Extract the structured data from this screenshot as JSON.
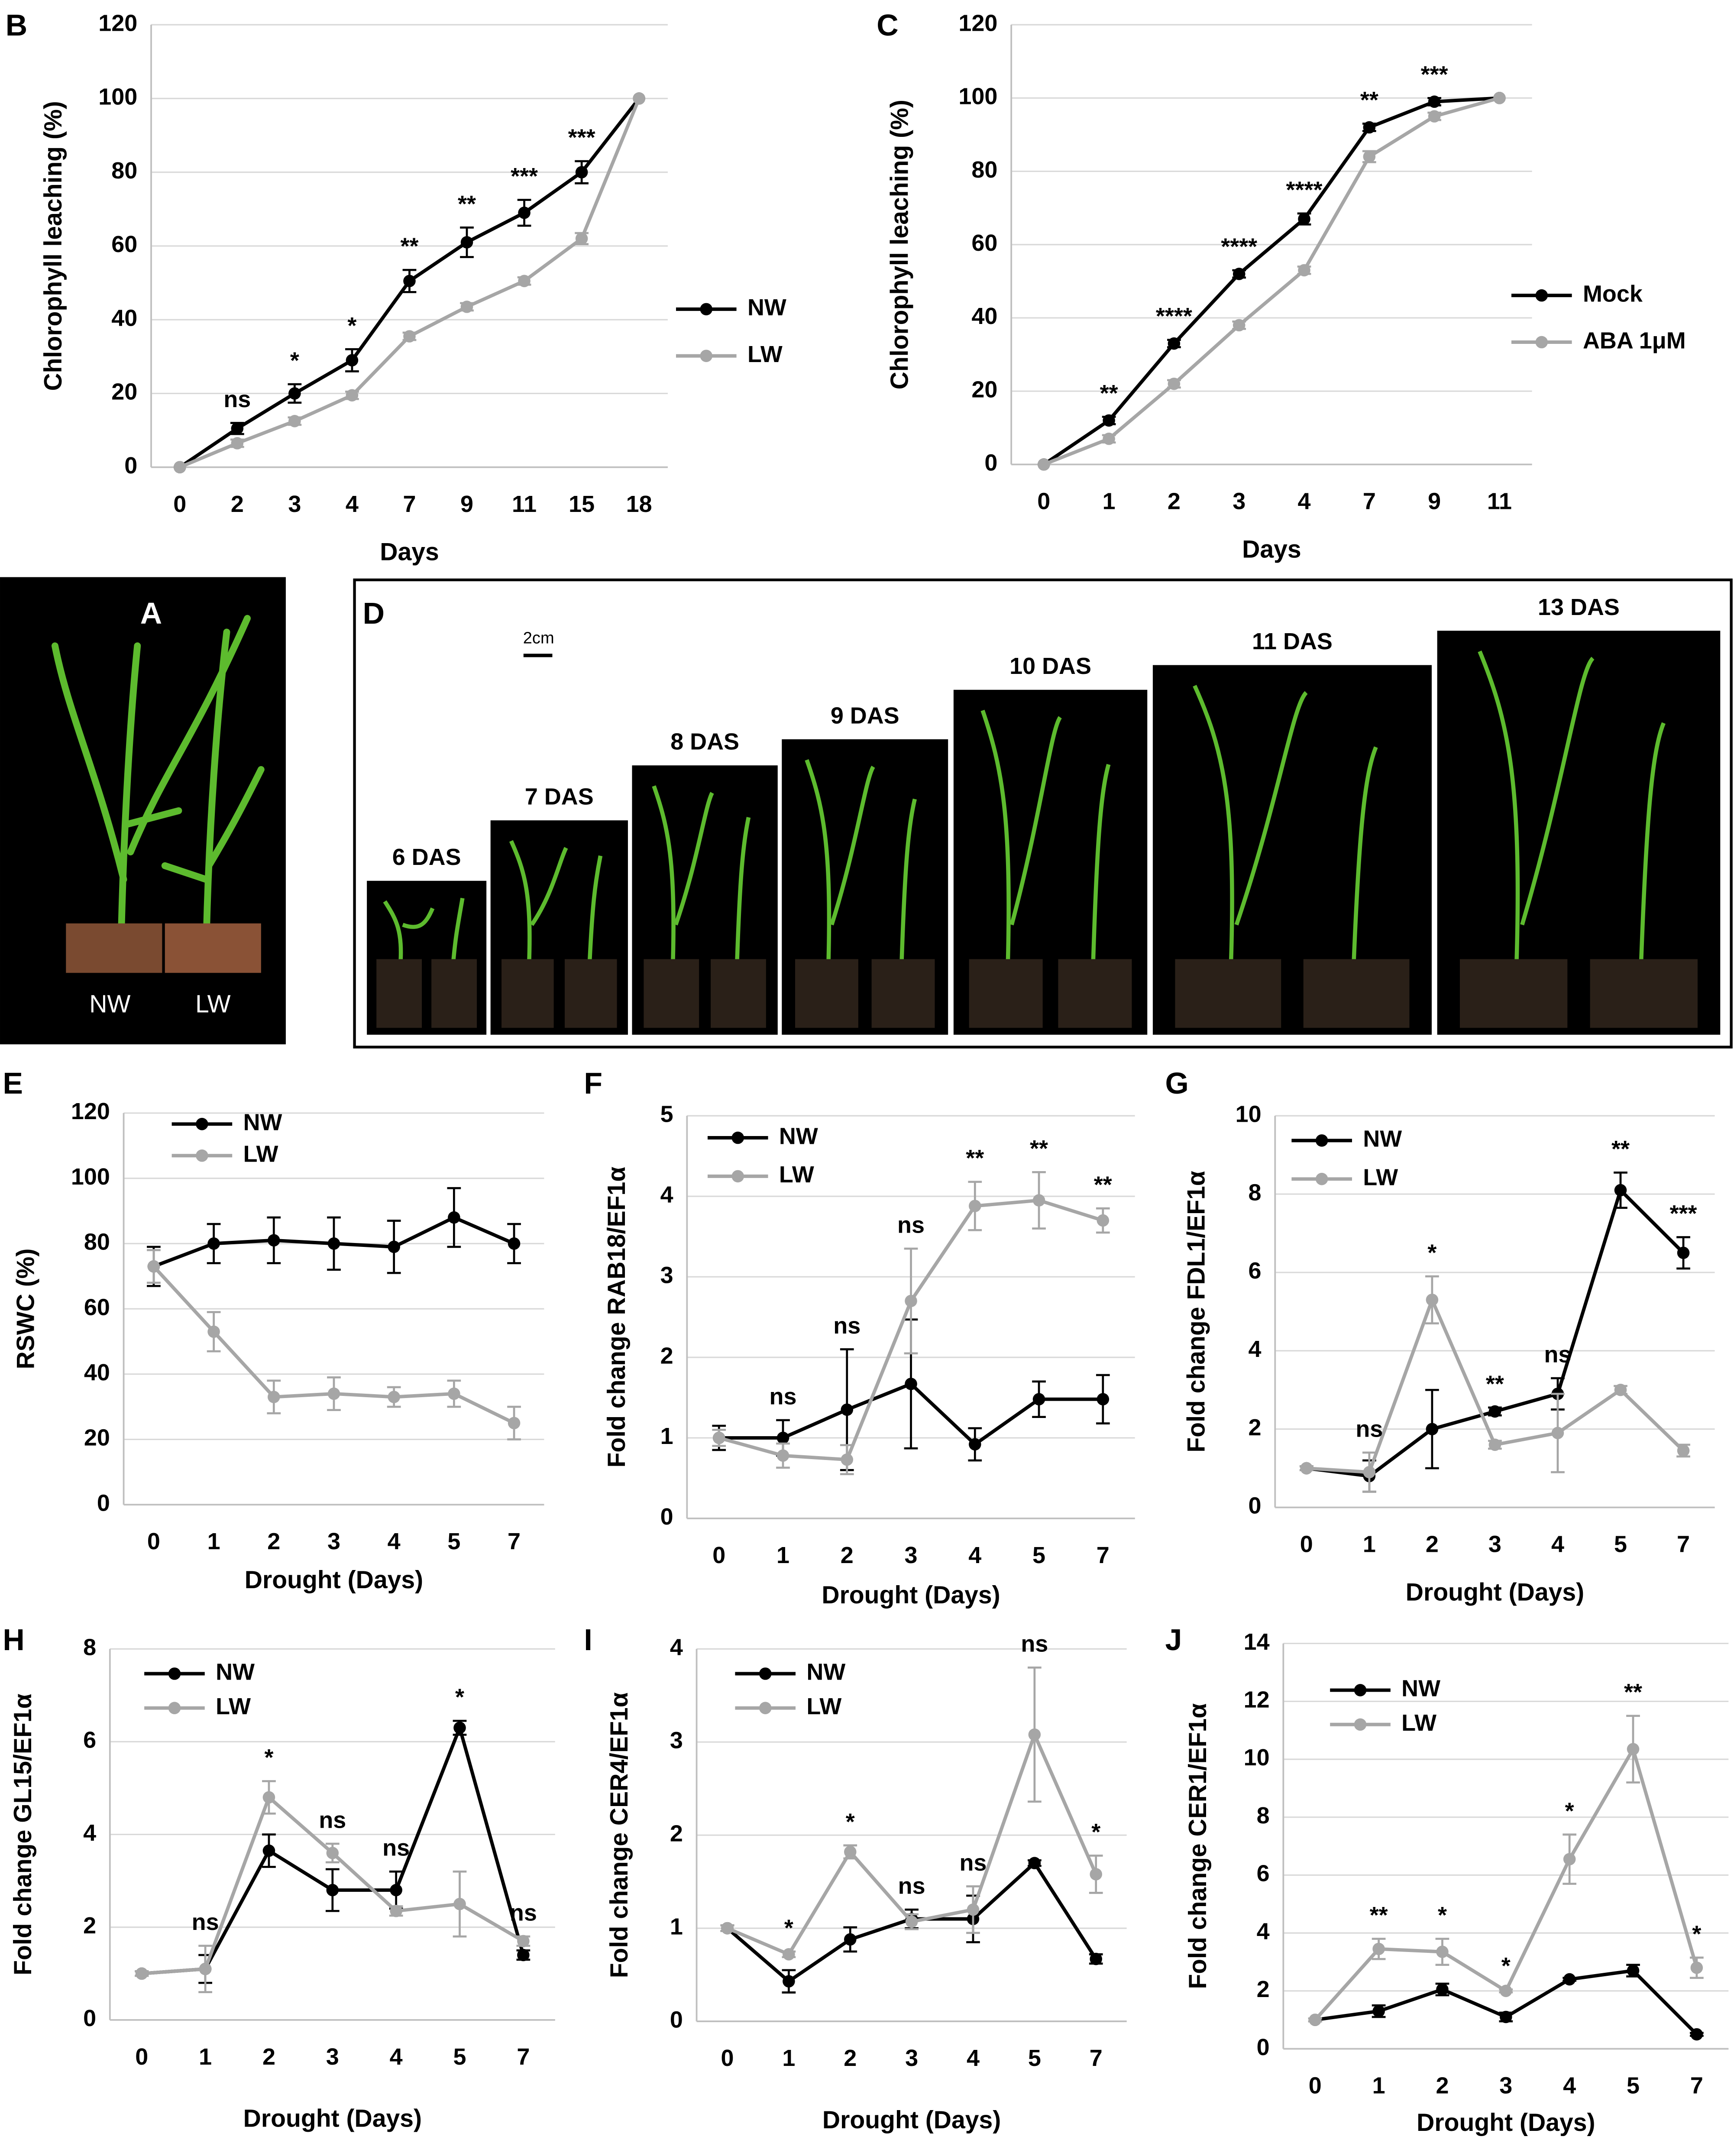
{
  "chart_data": [
    {
      "type": "line",
      "panel": "B",
      "x_label": "Days",
      "y_label": "Chlorophyll leaching (%)",
      "categories": [
        "0",
        "2",
        "3",
        "4",
        "7",
        "9",
        "11",
        "15",
        "18"
      ],
      "ylim": [
        0,
        120
      ],
      "yticks": [
        0,
        20,
        40,
        60,
        80,
        100,
        120
      ],
      "grid": true,
      "legend": "right",
      "series": [
        {
          "name": "NW",
          "color": "#000000",
          "values": [
            0,
            10.5,
            20,
            29,
            50.5,
            61,
            69,
            80,
            100
          ],
          "errors": [
            0,
            1.5,
            2.5,
            3,
            3,
            4,
            3.5,
            3,
            0
          ]
        },
        {
          "name": "LW",
          "color": "#a6a6a6",
          "values": [
            0,
            6.5,
            12.5,
            19.5,
            35.5,
            43.5,
            50.5,
            62,
            100
          ],
          "errors": [
            0,
            1,
            1,
            1,
            1,
            1,
            1,
            1.5,
            0
          ]
        }
      ],
      "annotations": [
        null,
        "ns",
        "*",
        "*",
        "**",
        "**",
        "***",
        "***",
        null
      ]
    },
    {
      "type": "line",
      "panel": "C",
      "x_label": "Days",
      "y_label": "Chlorophyll leaching (%)",
      "categories": [
        "0",
        "1",
        "2",
        "3",
        "4",
        "7",
        "9",
        "11"
      ],
      "ylim": [
        0,
        120
      ],
      "yticks": [
        0,
        20,
        40,
        60,
        80,
        100,
        120
      ],
      "grid": true,
      "legend": "right",
      "series": [
        {
          "name": "Mock",
          "color": "#000000",
          "values": [
            0,
            12,
            33,
            52,
            67,
            92,
            99,
            100
          ],
          "errors": [
            0,
            1,
            1,
            1,
            1.5,
            1,
            1,
            0
          ]
        },
        {
          "name": "ABA 1μM",
          "color": "#a6a6a6",
          "values": [
            0,
            7,
            22,
            38,
            53,
            84,
            95,
            100
          ],
          "errors": [
            0,
            1,
            1,
            1,
            1,
            1.5,
            1,
            0
          ]
        }
      ],
      "annotations": [
        null,
        "**",
        "****",
        "****",
        "****",
        "**",
        "***",
        null
      ]
    },
    {
      "type": "line",
      "panel": "E",
      "x_label": "Drought (Days)",
      "y_label": "RSWC (%)",
      "categories": [
        "0",
        "1",
        "2",
        "3",
        "4",
        "5",
        "7"
      ],
      "ylim": [
        0,
        120
      ],
      "yticks": [
        0,
        20,
        40,
        60,
        80,
        100,
        120
      ],
      "grid": true,
      "legend": "top left",
      "series": [
        {
          "name": "NW",
          "color": "#000000",
          "values": [
            73,
            80,
            81,
            80,
            79,
            88,
            80
          ],
          "errors": [
            6,
            6,
            7,
            8,
            8,
            9,
            6
          ]
        },
        {
          "name": "LW",
          "color": "#a6a6a6",
          "values": [
            73,
            53,
            33,
            34,
            33,
            34,
            25
          ],
          "errors": [
            5,
            6,
            5,
            5,
            3,
            4,
            5
          ]
        }
      ],
      "annotations": [
        null,
        null,
        null,
        null,
        null,
        null,
        null
      ]
    },
    {
      "type": "line",
      "panel": "F",
      "x_label": "Drought (Days)",
      "y_label": "Fold change RAB18/EF1α",
      "categories": [
        "0",
        "1",
        "2",
        "3",
        "4",
        "5",
        "7"
      ],
      "ylim": [
        0,
        5
      ],
      "yticks": [
        0,
        1,
        2,
        3,
        4,
        5
      ],
      "grid": true,
      "legend": "top left",
      "series": [
        {
          "name": "NW",
          "color": "#000000",
          "values": [
            1,
            1,
            1.35,
            1.67,
            0.92,
            1.48,
            1.48
          ],
          "errors": [
            0.15,
            0.22,
            0.75,
            0.8,
            0.2,
            0.22,
            0.3
          ]
        },
        {
          "name": "LW",
          "color": "#a6a6a6",
          "values": [
            1,
            0.78,
            0.73,
            2.7,
            3.88,
            3.95,
            3.7
          ],
          "errors": [
            0.1,
            0.15,
            0.18,
            0.65,
            0.3,
            0.35,
            0.15
          ]
        }
      ],
      "annotations": [
        null,
        "ns",
        "ns",
        "ns",
        "**",
        "**",
        "**"
      ]
    },
    {
      "type": "line",
      "panel": "G",
      "x_label": "Drought (Days)",
      "y_label": "Fold change  FDL1/EF1α",
      "categories": [
        "0",
        "1",
        "2",
        "3",
        "4",
        "5",
        "7"
      ],
      "ylim": [
        0,
        10
      ],
      "yticks": [
        0,
        2,
        4,
        6,
        8,
        10
      ],
      "grid": true,
      "legend": "top left",
      "series": [
        {
          "name": "NW",
          "color": "#000000",
          "values": [
            1,
            0.8,
            2,
            2.45,
            2.9,
            8.1,
            6.5
          ],
          "errors": [
            0.05,
            0.4,
            1,
            0.1,
            0.4,
            0.45,
            0.4
          ]
        },
        {
          "name": "LW",
          "color": "#a6a6a6",
          "values": [
            1,
            0.9,
            5.3,
            1.6,
            1.9,
            3,
            1.45
          ],
          "errors": [
            0.05,
            0.5,
            0.6,
            0.1,
            1,
            0.1,
            0.15
          ]
        }
      ],
      "annotations": [
        null,
        "ns",
        "*",
        "**",
        "ns",
        "**",
        "***"
      ]
    },
    {
      "type": "line",
      "panel": "H",
      "x_label": "Drought (Days)",
      "y_label": "Fold change GL15/EF1α",
      "categories": [
        "0",
        "1",
        "2",
        "3",
        "4",
        "5",
        "7"
      ],
      "ylim": [
        0,
        8
      ],
      "yticks": [
        0,
        2,
        4,
        6,
        8
      ],
      "grid": true,
      "legend": "top left",
      "series": [
        {
          "name": "NW",
          "color": "#000000",
          "values": [
            1,
            1.1,
            3.65,
            2.8,
            2.8,
            6.3,
            1.4
          ],
          "errors": [
            0.05,
            0.3,
            0.35,
            0.45,
            0.4,
            0.15,
            0.1
          ]
        },
        {
          "name": "LW",
          "color": "#a6a6a6",
          "values": [
            1,
            1.1,
            4.8,
            3.6,
            2.35,
            2.5,
            1.7
          ],
          "errors": [
            0.05,
            0.5,
            0.35,
            0.2,
            0.1,
            0.7,
            0.1
          ]
        }
      ],
      "annotations": [
        null,
        "ns",
        "*",
        "ns",
        "ns",
        "*",
        "ns"
      ]
    },
    {
      "type": "line",
      "panel": "I",
      "x_label": "Drought (Days)",
      "y_label": "Fold change CER4/EF1α",
      "categories": [
        "0",
        "1",
        "2",
        "3",
        "4",
        "5",
        "7"
      ],
      "ylim": [
        0,
        4
      ],
      "yticks": [
        0,
        1,
        2,
        3,
        4
      ],
      "grid": true,
      "legend": "top left",
      "series": [
        {
          "name": "NW",
          "color": "#000000",
          "values": [
            1,
            0.43,
            0.88,
            1.1,
            1.1,
            1.7,
            0.67
          ],
          "errors": [
            0.03,
            0.12,
            0.13,
            0.1,
            0.25,
            0.03,
            0.05
          ]
        },
        {
          "name": "LW",
          "color": "#a6a6a6",
          "values": [
            1,
            0.72,
            1.82,
            1.07,
            1.2,
            3.08,
            1.58
          ],
          "errors": [
            0.03,
            0.03,
            0.07,
            0.08,
            0.25,
            0.72,
            0.2
          ]
        }
      ],
      "annotations": [
        null,
        "*",
        "*",
        "ns",
        "ns",
        "ns",
        "*"
      ]
    },
    {
      "type": "line",
      "panel": "J",
      "x_label": "Drought (Days)",
      "y_label": "Fold change CER1/EF1α",
      "categories": [
        "0",
        "1",
        "2",
        "3",
        "4",
        "5",
        "7"
      ],
      "ylim": [
        0,
        14
      ],
      "yticks": [
        0,
        2,
        4,
        6,
        8,
        10,
        12,
        14
      ],
      "grid": true,
      "legend": "top left",
      "series": [
        {
          "name": "NW",
          "color": "#000000",
          "values": [
            1,
            1.3,
            2.05,
            1.1,
            2.4,
            2.7,
            0.5
          ],
          "errors": [
            0.05,
            0.2,
            0.2,
            0.15,
            0.05,
            0.2,
            0.05
          ]
        },
        {
          "name": "LW",
          "color": "#a6a6a6",
          "values": [
            1,
            3.45,
            3.35,
            2,
            6.55,
            10.35,
            2.8
          ],
          "errors": [
            0.05,
            0.35,
            0.45,
            0.05,
            0.85,
            1.15,
            0.35
          ]
        }
      ],
      "annotations": [
        null,
        "**",
        "*",
        "*",
        "*",
        "**",
        "*"
      ]
    }
  ],
  "photos": {
    "panel_a": {
      "label": "A",
      "plants": [
        "NW",
        "LW"
      ]
    },
    "panel_d": {
      "label": "D",
      "scale": "2cm",
      "stages": [
        "6 DAS",
        "7 DAS",
        "8 DAS",
        "9 DAS",
        "10 DAS",
        "11 DAS",
        "13 DAS"
      ]
    }
  }
}
